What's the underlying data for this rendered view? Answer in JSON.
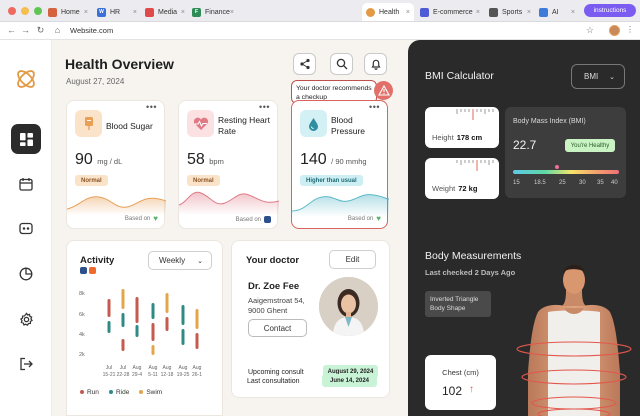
{
  "browser": {
    "tabs": [
      {
        "label": "Home",
        "fav_color": "#d4633e",
        "fav_text": ""
      },
      {
        "label": "HR",
        "fav_color": "#3b6fd9",
        "fav_text": "W"
      },
      {
        "label": "Media",
        "fav_color": "#e14a4a",
        "fav_text": ""
      },
      {
        "label": "Finance",
        "fav_color": "#2e8c57",
        "fav_text": "F"
      },
      {
        "label": "Health",
        "fav_color": "#e39a45",
        "fav_text": ""
      },
      {
        "label": "E-commerce",
        "fav_color": "#4e5bd6",
        "fav_text": ""
      },
      {
        "label": "Sports",
        "fav_color": "#555555",
        "fav_text": ""
      },
      {
        "label": "AI",
        "fav_color": "#3f7cd9",
        "fav_text": ""
      }
    ],
    "instructions_label": "instructions",
    "url": "Website.com"
  },
  "header": {
    "title": "Health Overview",
    "date": "August 27, 2024",
    "tooltip": "Your doctor recommends a checkup"
  },
  "metrics": [
    {
      "name": "Blood Sugar",
      "value": "90",
      "unit": "mg / dL",
      "badge": "Normal",
      "badge_bg": "#fbe3c9",
      "badge_fg": "#8a5424",
      "based": "Based on",
      "icon": "blood-drop-bag-icon",
      "icon_bg": "#fbe3c9",
      "accent": "#e8a057"
    },
    {
      "name": "Resting Heart Rate",
      "value": "58",
      "unit": "bpm",
      "badge": "Normal",
      "badge_bg": "#fbe3c9",
      "badge_fg": "#8a5424",
      "based": "Based on",
      "icon": "heart-rate-icon",
      "icon_bg": "#fbe1e1",
      "accent": "#e07b86"
    },
    {
      "name": "Blood Pressure",
      "value": "140",
      "unit": "/ 90 mmhg",
      "badge": "Higher than usual",
      "badge_bg": "#cdeff3",
      "badge_fg": "#1f6a75",
      "based": "Based on",
      "icon": "droplet-icon",
      "icon_bg": "#d3f0f4",
      "accent": "#5ab9c8"
    }
  ],
  "activity": {
    "title": "Activity",
    "period": "Weekly",
    "y_ticks": [
      "8k",
      "6k",
      "4k",
      "2k"
    ],
    "x_labels": [
      [
        "Jul",
        "15-21"
      ],
      [
        "Jul",
        "22-28"
      ],
      [
        "Aug",
        "29-4"
      ],
      [
        "Aug",
        "5-11"
      ],
      [
        "Aug",
        "12-18"
      ],
      [
        "Aug",
        "19-25"
      ],
      [
        "Aug",
        "26-1"
      ]
    ],
    "legend": [
      {
        "label": "Run",
        "color": "#c55a4e"
      },
      {
        "label": "Ride",
        "color": "#2f8a86"
      },
      {
        "label": "Swim",
        "color": "#e3a64a"
      }
    ]
  },
  "doctor": {
    "title": "Your doctor",
    "edit_label": "Edit",
    "name": "Dr. Zoe Fee",
    "address": "Aaigemstroat 54, 9000 Ghent",
    "contact_label": "Contact",
    "upcoming_label": "Upcoming consult",
    "upcoming_date": "August 29, 2024",
    "upcoming_bg": "#c9f3d6",
    "last_label": "Last consultation",
    "last_date": "June 14, 2024",
    "last_bg": "#c9f3d6"
  },
  "bmi": {
    "title": "BMI Calculator",
    "selector": "BMI",
    "height_label": "Height",
    "height_value": "178 cm",
    "weight_label": "Weight",
    "weight_value": "72 kg",
    "index_label": "Body Mass Index (BMI)",
    "index_value": "22.7",
    "status": "You're Healthy",
    "scale_labels": [
      "15",
      "18.5",
      "25",
      "30",
      "35",
      "40"
    ]
  },
  "body": {
    "title": "Body Measurements",
    "subtitle": "Last checked 2 Days Ago",
    "shape": "Inverted Triangle Body Shape",
    "chest_label": "Chest (cm)",
    "chest_value": "102"
  }
}
